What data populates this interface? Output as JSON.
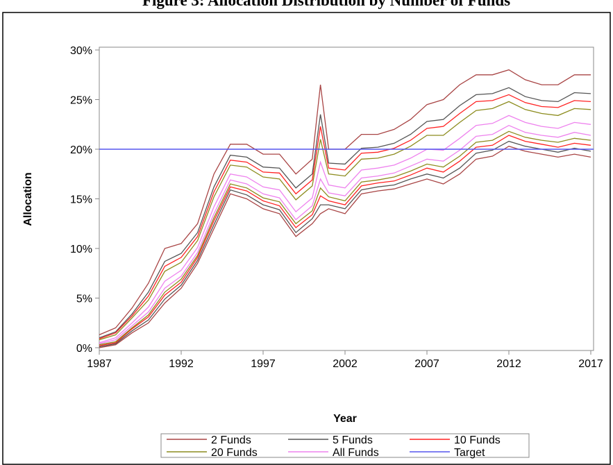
{
  "chart_data": {
    "type": "band-line",
    "title": "Figure 3: Allocation Distribution by Number of Funds",
    "x_label": "Year",
    "y_label": "Allocation",
    "x": [
      1987,
      1988,
      1989,
      1990,
      1991,
      1992,
      1993,
      1994,
      1995,
      1996,
      1997,
      1998,
      1999,
      2000,
      2000.5,
      2001,
      2002,
      2003,
      2004,
      2005,
      2006,
      2007,
      2008,
      2009,
      2010,
      2011,
      2012,
      2013,
      2014,
      2015,
      2016,
      2017
    ],
    "xlim": [
      1987,
      2017
    ],
    "xticks": [
      1987,
      1992,
      1997,
      2002,
      2007,
      2012,
      2017
    ],
    "ylim": [
      0,
      30
    ],
    "yticks": [
      {
        "value": 0,
        "label": "0%"
      },
      {
        "value": 5,
        "label": "5%"
      },
      {
        "value": 10,
        "label": "10%"
      },
      {
        "value": 15,
        "label": "15%"
      },
      {
        "value": 20,
        "label": "20%"
      },
      {
        "value": 25,
        "label": "25%"
      },
      {
        "value": 30,
        "label": "30%"
      }
    ],
    "series": [
      {
        "name": "2 Funds",
        "color": "#a84444",
        "upper": [
          1.3,
          2,
          4,
          6.5,
          10,
          10.5,
          12.5,
          17.5,
          20.5,
          20.5,
          19.5,
          19.5,
          17.5,
          19,
          26.5,
          20,
          20,
          21.5,
          21.5,
          22,
          23,
          24.5,
          25,
          26.5,
          27.5,
          27.5,
          28,
          27,
          26.5,
          26.5,
          27.5,
          27.5
        ],
        "lower": [
          0,
          0.3,
          1.5,
          2.5,
          4.5,
          6,
          8.5,
          12,
          15.5,
          15,
          14,
          13.5,
          11.2,
          12.5,
          13.5,
          14,
          13.5,
          15.5,
          15.8,
          16,
          16.5,
          17,
          16.5,
          17.5,
          19,
          19.3,
          20.3,
          19.8,
          19.5,
          19.2,
          19.5,
          19.2
        ]
      },
      {
        "name": "5 Funds",
        "color": "#555555",
        "upper": [
          1.0,
          1.6,
          3.4,
          5.6,
          8.7,
          9.5,
          11.6,
          16.2,
          19.4,
          19.2,
          18.2,
          18.1,
          16.1,
          17.5,
          23.5,
          18.6,
          18.5,
          20.1,
          20.2,
          20.6,
          21.5,
          22.8,
          23.0,
          24.4,
          25.5,
          25.6,
          26.2,
          25.3,
          24.9,
          24.8,
          25.7,
          25.6
        ],
        "lower": [
          0.1,
          0.4,
          1.7,
          2.8,
          4.9,
          6.3,
          8.8,
          12.4,
          15.9,
          15.4,
          14.4,
          13.9,
          11.6,
          13.0,
          14.4,
          14.4,
          14.0,
          15.9,
          16.2,
          16.4,
          17.0,
          17.5,
          17.1,
          18.1,
          19.6,
          19.9,
          20.8,
          20.3,
          20.0,
          19.7,
          20.1,
          19.8
        ]
      },
      {
        "name": "10 Funds",
        "color": "#ff2222",
        "upper": [
          0.9,
          1.5,
          3.2,
          5.2,
          8.2,
          9.1,
          11.2,
          15.7,
          18.9,
          18.7,
          17.7,
          17.6,
          15.5,
          16.9,
          22.3,
          18.1,
          17.9,
          19.6,
          19.7,
          20.1,
          20.9,
          22.1,
          22.3,
          23.6,
          24.8,
          24.9,
          25.5,
          24.7,
          24.3,
          24.2,
          24.9,
          24.8
        ],
        "lower": [
          0.2,
          0.5,
          1.9,
          3.1,
          5.3,
          6.6,
          9.1,
          12.8,
          16.2,
          15.8,
          14.8,
          14.3,
          12.1,
          13.4,
          15.3,
          14.8,
          14.4,
          16.3,
          16.6,
          16.8,
          17.4,
          18.1,
          17.7,
          18.8,
          20.2,
          20.4,
          21.4,
          20.8,
          20.5,
          20.2,
          20.6,
          20.4
        ]
      },
      {
        "name": "20 Funds",
        "color": "#8c8c1e",
        "upper": [
          0.8,
          1.3,
          3.0,
          4.8,
          7.7,
          8.6,
          10.8,
          15.2,
          18.4,
          18.2,
          17.2,
          17.0,
          14.9,
          16.3,
          21.0,
          17.5,
          17.3,
          19.0,
          19.1,
          19.5,
          20.3,
          21.4,
          21.4,
          22.7,
          23.9,
          24.1,
          24.8,
          24.0,
          23.6,
          23.4,
          24.1,
          24.0
        ],
        "lower": [
          0.3,
          0.6,
          2.0,
          3.3,
          5.6,
          6.9,
          9.3,
          13.1,
          16.5,
          16.1,
          15.1,
          14.7,
          12.5,
          13.8,
          16.1,
          15.2,
          14.8,
          16.7,
          16.9,
          17.2,
          17.8,
          18.5,
          18.2,
          19.3,
          20.7,
          20.9,
          21.8,
          21.2,
          20.9,
          20.7,
          21.1,
          20.9
        ]
      },
      {
        "name": "All Funds",
        "color": "#ee82ee",
        "upper": [
          0.5,
          1.0,
          2.5,
          4.1,
          6.7,
          7.8,
          10.1,
          14.2,
          17.5,
          17.2,
          16.2,
          15.9,
          13.7,
          15.1,
          18.7,
          16.4,
          16.1,
          17.9,
          18.1,
          18.4,
          19.1,
          20.0,
          19.9,
          21.1,
          22.4,
          22.6,
          23.4,
          22.7,
          22.3,
          22.1,
          22.7,
          22.5
        ],
        "lower": [
          0.4,
          0.8,
          2.2,
          3.6,
          6.0,
          7.2,
          9.6,
          13.5,
          16.9,
          16.5,
          15.5,
          15.1,
          12.9,
          14.3,
          17.0,
          15.6,
          15.3,
          17.1,
          17.3,
          17.6,
          18.3,
          19.0,
          18.8,
          19.9,
          21.3,
          21.5,
          22.4,
          21.7,
          21.4,
          21.2,
          21.7,
          21.4
        ]
      },
      {
        "name": "Target",
        "color": "#5555ee",
        "value": 20
      }
    ]
  }
}
